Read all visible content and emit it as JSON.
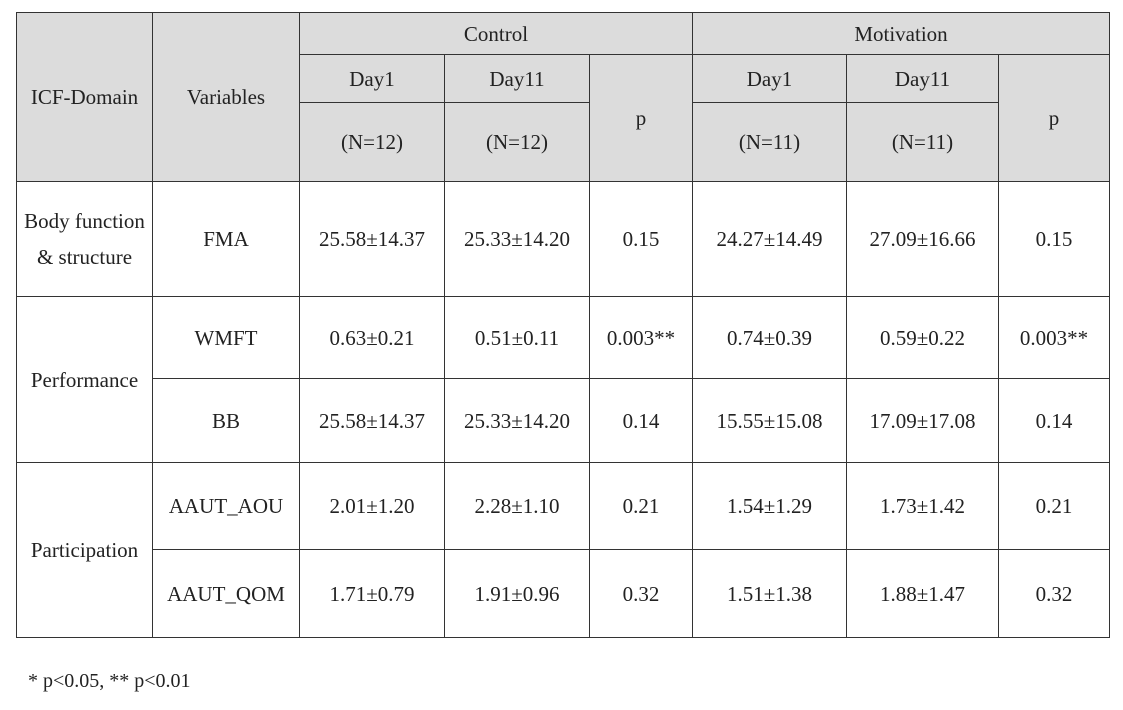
{
  "table": {
    "header": {
      "domain": "ICF-Domain",
      "variables": "Variables",
      "groups": [
        "Control",
        "Motivation"
      ],
      "days": [
        "Day1",
        "Day11",
        "Day1",
        "Day11"
      ],
      "p": [
        "p",
        "p"
      ],
      "n": [
        "(N=12)",
        "(N=12)",
        "(N=11)",
        "(N=11)"
      ]
    },
    "domains": [
      {
        "name": "Body function & structure",
        "rows": [
          {
            "variable": "FMA",
            "cells": [
              "25.58±14.37",
              "25.33±14.20",
              "0.15",
              "24.27±14.49",
              "27.09±16.66",
              "0.15"
            ]
          }
        ]
      },
      {
        "name": "Performance",
        "rows": [
          {
            "variable": "WMFT",
            "cells": [
              "0.63±0.21",
              "0.51±0.11",
              "0.003**",
              "0.74±0.39",
              "0.59±0.22",
              "0.003**"
            ]
          },
          {
            "variable": "BB",
            "cells": [
              "25.58±14.37",
              "25.33±14.20",
              "0.14",
              "15.55±15.08",
              "17.09±17.08",
              "0.14"
            ]
          }
        ]
      },
      {
        "name": "Participation",
        "rows": [
          {
            "variable": "AAUT_AOU",
            "cells": [
              "2.01±1.20",
              "2.28±1.10",
              "0.21",
              "1.54±1.29",
              "1.73±1.42",
              "0.21"
            ]
          },
          {
            "variable": "AAUT_QOM",
            "cells": [
              "1.71±0.79",
              "1.91±0.96",
              "0.32",
              "1.51±1.38",
              "1.88±1.47",
              "0.32"
            ]
          }
        ]
      }
    ],
    "footnote": "* p<0.05, ** p<0.01"
  }
}
